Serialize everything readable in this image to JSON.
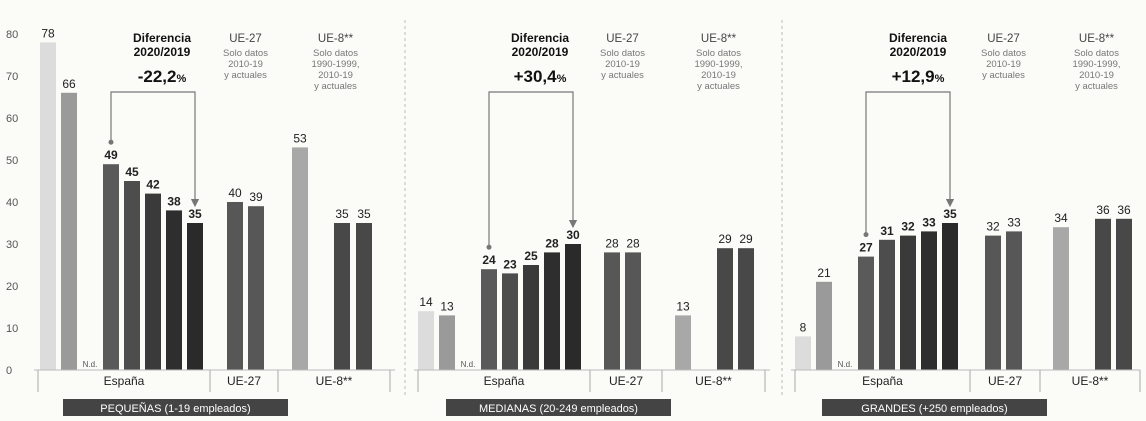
{
  "chart_data": {
    "type": "bar",
    "y_ticks": [
      0,
      10,
      20,
      30,
      40,
      50,
      60,
      70,
      80
    ],
    "ylim": [
      0,
      80
    ],
    "grid": false,
    "nd_label": "N.d.",
    "group_labels": [
      "España",
      "UE-27",
      "UE-8**"
    ],
    "panels": [
      {
        "title": "PEQUEÑAS (1-19 empleados)",
        "diff_title": [
          "Diferencia",
          "2020/2019"
        ],
        "diff_value": "-22,2",
        "diff_unit": "%",
        "ue27_note": {
          "head": "UE-27",
          "lines": [
            "Solo datos",
            "2010-19",
            "y actuales"
          ]
        },
        "ue8_note": {
          "head": "UE-8**",
          "lines": [
            "Solo datos",
            "1990-1999,",
            "2010-19",
            "y actuales"
          ]
        },
        "spain": [
          78,
          66,
          null,
          49,
          45,
          42,
          38,
          35
        ],
        "ue27": [
          40,
          39
        ],
        "ue8": [
          53,
          null,
          35,
          35
        ]
      },
      {
        "title": "MEDIANAS (20-249 empleados)",
        "diff_title": [
          "Diferencia",
          "2020/2019"
        ],
        "diff_value": "+30,4",
        "diff_unit": "%",
        "ue27_note": {
          "head": "UE-27",
          "lines": [
            "Solo datos",
            "2010-19",
            "y actuales"
          ]
        },
        "ue8_note": {
          "head": "UE-8**",
          "lines": [
            "Solo datos",
            "1990-1999,",
            "2010-19",
            "y actuales"
          ]
        },
        "spain": [
          14,
          13,
          null,
          24,
          23,
          25,
          28,
          30
        ],
        "ue27": [
          28,
          28
        ],
        "ue8": [
          13,
          null,
          29,
          29
        ]
      },
      {
        "title": "GRANDES (+250 empleados)",
        "diff_title": [
          "Diferencia",
          "2020/2019"
        ],
        "diff_value": "+12,9",
        "diff_unit": "%",
        "ue27_note": {
          "head": "UE-27",
          "lines": [
            "Solo datos",
            "2010-19",
            "y actuales"
          ]
        },
        "ue8_note": {
          "head": "UE-8**",
          "lines": [
            "Solo datos",
            "1990-1999,",
            "2010-19",
            "y actuales"
          ]
        },
        "spain": [
          8,
          21,
          null,
          27,
          31,
          32,
          33,
          35
        ],
        "ue27": [
          32,
          33
        ],
        "ue8": [
          34,
          null,
          36,
          36
        ]
      }
    ]
  }
}
